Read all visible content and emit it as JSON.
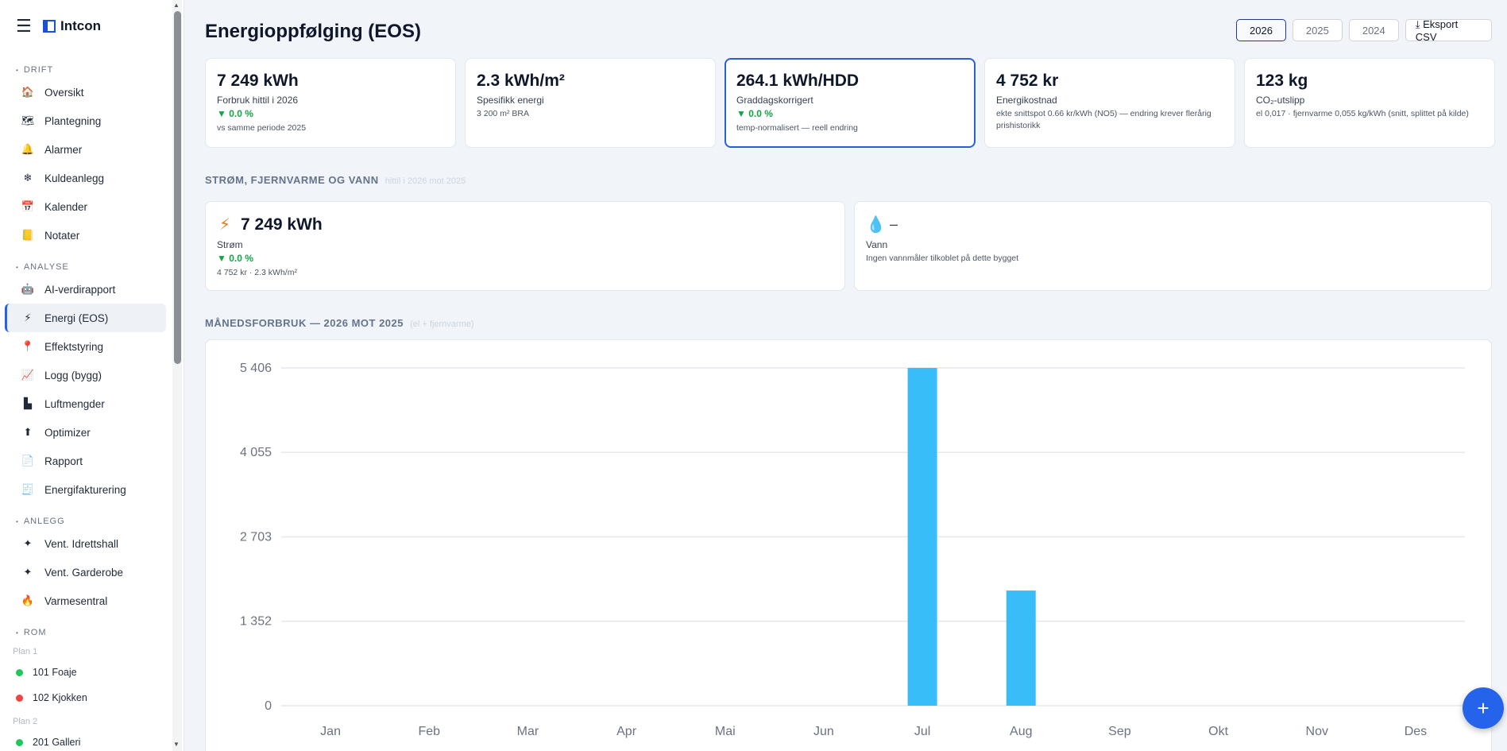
{
  "app": {
    "name": "Intcon"
  },
  "sidebar": {
    "sections": [
      {
        "title": "DRIFT",
        "items": [
          {
            "label": "Oversikt",
            "icon": "🏠",
            "icon_name": "house-icon"
          },
          {
            "label": "Plantegning",
            "icon": "🗺",
            "icon_name": "map-icon"
          },
          {
            "label": "Alarmer",
            "icon": "🔔",
            "icon_name": "bell-icon"
          },
          {
            "label": "Kuldeanlegg",
            "icon": "❄",
            "icon_name": "snowflake-icon"
          },
          {
            "label": "Kalender",
            "icon": "📅",
            "icon_name": "calendar-icon"
          },
          {
            "label": "Notater",
            "icon": "📒",
            "icon_name": "notebook-icon"
          }
        ]
      },
      {
        "title": "ANALYSE",
        "items": [
          {
            "label": "AI-verdirapport",
            "icon": "🤖",
            "icon_name": "robot-icon"
          },
          {
            "label": "Energi (EOS)",
            "icon": "⚡",
            "icon_name": "lightning-icon",
            "active": true
          },
          {
            "label": "Effektstyring",
            "icon": "📍",
            "icon_name": "pin-icon"
          },
          {
            "label": "Logg (bygg)",
            "icon": "📈",
            "icon_name": "chart-up-icon"
          },
          {
            "label": "Luftmengder",
            "icon": "▙",
            "icon_name": "airflow-icon"
          },
          {
            "label": "Optimizer",
            "icon": "⬆",
            "icon_name": "up-arrow-icon"
          },
          {
            "label": "Rapport",
            "icon": "📄",
            "icon_name": "document-icon"
          },
          {
            "label": "Energifakturering",
            "icon": "🧾",
            "icon_name": "invoice-icon"
          }
        ]
      },
      {
        "title": "ANLEGG",
        "items": [
          {
            "label": "Vent. Idrettshall",
            "icon": "✦",
            "icon_name": "fan-icon"
          },
          {
            "label": "Vent. Garderobe",
            "icon": "✦",
            "icon_name": "fan-icon"
          },
          {
            "label": "Varmesentral",
            "icon": "🔥",
            "icon_name": "flame-icon"
          }
        ]
      }
    ],
    "rooms_title": "ROM",
    "room_groups": [
      {
        "name": "Plan 1",
        "rooms": [
          {
            "label": "101 Foaje",
            "status_color": "#22c55e"
          },
          {
            "label": "102 Kjokken",
            "status_color": "#ef4444"
          }
        ]
      },
      {
        "name": "Plan 2",
        "rooms": [
          {
            "label": "201 Galleri",
            "status_color": "#22c55e"
          }
        ]
      }
    ]
  },
  "page": {
    "title": "Energioppfølging (EOS)",
    "years": [
      "2026",
      "2025",
      "2024"
    ],
    "selected_year": "2026",
    "export_label": "⤓ Eksport CSV"
  },
  "kpis": [
    {
      "value": "7 249 kWh",
      "label": "Forbruk hittil i 2026",
      "delta": "▼ 0.0 %",
      "note": "vs samme periode 2025"
    },
    {
      "value": "2.3 kWh/m²",
      "label": "Spesifikk energi",
      "note": "3 200 m² BRA"
    },
    {
      "value": "264.1 kWh/HDD",
      "label": "Graddagskorrigert",
      "delta": "▼ 0.0 %",
      "note": "temp-normalisert — reell endring",
      "highlighted": true
    },
    {
      "value": "4 752 kr",
      "label": "Energikostnad",
      "note": "ekte snittspot 0.66 kr/kWh (NO5) — endring krever flerårig prishistorikk"
    },
    {
      "value": "123 kg",
      "label": "CO₂-utslipp",
      "note": "el 0,017 · fjernvarme 0,055 kg/kWh (snitt, splittet på kilde)"
    }
  ],
  "utilities_section": {
    "title": "STRØM, FJERNVARME OG VANN",
    "subtitle": "hittil i 2026 mot 2025"
  },
  "utilities": [
    {
      "icon": "⚡",
      "icon_name": "lightning-icon",
      "value": "7 249 kWh",
      "label": "Strøm",
      "delta": "▼ 0.0 %",
      "note": "4 752 kr · 2.3 kWh/m²"
    },
    {
      "icon": "💧",
      "icon_name": "water-drop-icon",
      "value": "–",
      "label": "Vann",
      "note": "Ingen vannmåler tilkoblet på dette bygget"
    }
  ],
  "chart_section": {
    "title": "MÅNEDSFORBRUK — 2026 MOT 2025",
    "subtitle": "(el + fjernvarme)"
  },
  "chart_data": {
    "type": "bar",
    "title": "",
    "categories": [
      "Jan",
      "Feb",
      "Mar",
      "Apr",
      "Mai",
      "Jun",
      "Jul",
      "Aug",
      "Sep",
      "Okt",
      "Nov",
      "Des"
    ],
    "series": [
      {
        "values": [
          0,
          0,
          0,
          0,
          0,
          0,
          5406,
          1843,
          0,
          0,
          0,
          0
        ],
        "color": "#38bdf8"
      }
    ],
    "yticks": [
      0,
      1352,
      2703,
      4055,
      5406
    ],
    "ytick_labels": [
      "0",
      "1 352",
      "2 703",
      "4 055",
      "5 406"
    ],
    "ylim": [
      0,
      5406
    ],
    "grid": true
  },
  "fab_label": "+"
}
